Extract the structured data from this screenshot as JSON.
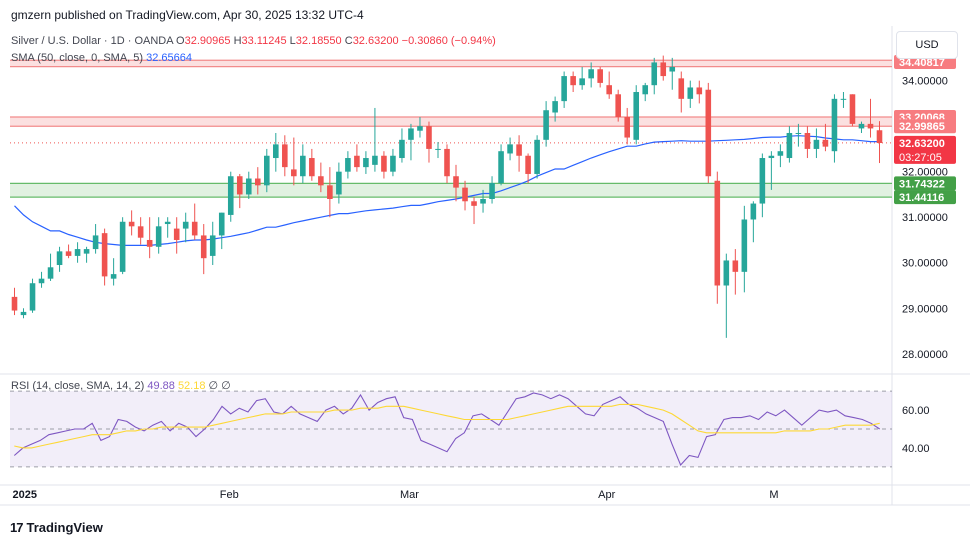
{
  "header": {
    "publisher": "gmzern published on TradingView.com, Apr 30, 2025 13:32 UTC-4"
  },
  "legend": {
    "symbol": "Silver / U.S. Dollar · 1D · OANDA",
    "o_label": "O",
    "o": "32.90965",
    "h_label": "H",
    "h": "33.11245",
    "l_label": "L",
    "l": "32.18550",
    "c_label": "C",
    "c": "32.63200",
    "change": "−0.30860 (−0.94%)",
    "sma_label": "SMA (50, close, 0, SMA, 5)",
    "sma_value": "32.65664",
    "rsi_label": "RSI (14, close, SMA, 14, 2)",
    "rsi_value": "49.88",
    "rsi_sma_value": "52.18",
    "rsi_extra": "∅ ∅"
  },
  "currency_button": "USD",
  "footer": {
    "brand": "TradingView",
    "logo": "17"
  },
  "colors": {
    "up": "#26a69a",
    "down": "#ef5350",
    "sma": "#2962ff",
    "rsi": "#7e57c2",
    "rsi_sma": "#fdd835",
    "zone_red": "#f7c7c7",
    "zone_green": "#c8e6c9"
  },
  "chart_data": [
    {
      "type": "candlestick",
      "title": "Silver / U.S. Dollar · 1D · OANDA",
      "ylim": [
        27.6,
        35.2
      ],
      "y_ticks": [
        "28.00000",
        "29.00000",
        "30.00000",
        "31.00000",
        "32.00000",
        "33.00000",
        "34.00000"
      ],
      "x_tick_labels": [
        "2025",
        "Feb",
        "Mar",
        "Apr",
        "M"
      ],
      "x_tick_index": [
        0,
        23,
        43,
        65,
        84
      ],
      "n_slots": 85,
      "candles": [
        {
          "o": 29.25,
          "h": 29.45,
          "l": 28.85,
          "c": 28.95
        },
        {
          "o": 28.85,
          "h": 29.0,
          "l": 28.78,
          "c": 28.92
        },
        {
          "o": 28.95,
          "h": 29.65,
          "l": 28.9,
          "c": 29.55
        },
        {
          "o": 29.55,
          "h": 29.8,
          "l": 29.45,
          "c": 29.65
        },
        {
          "o": 29.65,
          "h": 30.2,
          "l": 29.6,
          "c": 29.9
        },
        {
          "o": 29.95,
          "h": 30.35,
          "l": 29.8,
          "c": 30.25
        },
        {
          "o": 30.25,
          "h": 30.4,
          "l": 30.1,
          "c": 30.15
        },
        {
          "o": 30.15,
          "h": 30.45,
          "l": 30.0,
          "c": 30.3
        },
        {
          "o": 30.2,
          "h": 30.35,
          "l": 30.0,
          "c": 30.3
        },
        {
          "o": 30.3,
          "h": 30.85,
          "l": 30.2,
          "c": 30.6
        },
        {
          "o": 30.65,
          "h": 30.75,
          "l": 29.5,
          "c": 29.7
        },
        {
          "o": 29.65,
          "h": 30.1,
          "l": 29.5,
          "c": 29.75
        },
        {
          "o": 29.8,
          "h": 31.0,
          "l": 29.75,
          "c": 30.9
        },
        {
          "o": 30.9,
          "h": 31.15,
          "l": 30.6,
          "c": 30.8
        },
        {
          "o": 30.8,
          "h": 31.0,
          "l": 30.4,
          "c": 30.55
        },
        {
          "o": 30.5,
          "h": 31.0,
          "l": 30.1,
          "c": 30.35
        },
        {
          "o": 30.35,
          "h": 31.0,
          "l": 30.2,
          "c": 30.8
        },
        {
          "o": 30.85,
          "h": 31.0,
          "l": 30.55,
          "c": 30.9
        },
        {
          "o": 30.75,
          "h": 31.0,
          "l": 30.2,
          "c": 30.5
        },
        {
          "o": 30.75,
          "h": 31.1,
          "l": 30.45,
          "c": 30.9
        },
        {
          "o": 30.9,
          "h": 31.3,
          "l": 30.5,
          "c": 30.6
        },
        {
          "o": 30.6,
          "h": 30.85,
          "l": 29.75,
          "c": 30.1
        },
        {
          "o": 30.15,
          "h": 30.9,
          "l": 29.95,
          "c": 30.6
        },
        {
          "o": 30.6,
          "h": 31.1,
          "l": 30.3,
          "c": 31.1
        },
        {
          "o": 31.05,
          "h": 32.0,
          "l": 30.9,
          "c": 31.9
        },
        {
          "o": 31.9,
          "h": 31.95,
          "l": 31.2,
          "c": 31.5
        },
        {
          "o": 31.5,
          "h": 32.0,
          "l": 31.4,
          "c": 31.85
        },
        {
          "o": 31.85,
          "h": 32.1,
          "l": 31.5,
          "c": 31.7
        },
        {
          "o": 31.7,
          "h": 32.5,
          "l": 31.55,
          "c": 32.35
        },
        {
          "o": 32.3,
          "h": 32.85,
          "l": 32.0,
          "c": 32.6
        },
        {
          "o": 32.6,
          "h": 32.8,
          "l": 31.9,
          "c": 32.1
        },
        {
          "o": 32.05,
          "h": 32.75,
          "l": 31.7,
          "c": 31.9
        },
        {
          "o": 31.9,
          "h": 32.6,
          "l": 31.75,
          "c": 32.35
        },
        {
          "o": 32.3,
          "h": 32.5,
          "l": 31.8,
          "c": 31.9
        },
        {
          "o": 31.9,
          "h": 32.2,
          "l": 31.55,
          "c": 31.7
        },
        {
          "o": 31.7,
          "h": 32.1,
          "l": 31.0,
          "c": 31.4
        },
        {
          "o": 31.5,
          "h": 32.2,
          "l": 31.3,
          "c": 32.0
        },
        {
          "o": 32.0,
          "h": 32.45,
          "l": 31.85,
          "c": 32.3
        },
        {
          "o": 32.35,
          "h": 32.6,
          "l": 32.0,
          "c": 32.1
        },
        {
          "o": 32.1,
          "h": 32.45,
          "l": 31.95,
          "c": 32.3
        },
        {
          "o": 32.15,
          "h": 33.4,
          "l": 32.0,
          "c": 32.35
        },
        {
          "o": 32.35,
          "h": 32.45,
          "l": 31.85,
          "c": 32.0
        },
        {
          "o": 32.0,
          "h": 32.5,
          "l": 31.9,
          "c": 32.35
        },
        {
          "o": 32.3,
          "h": 32.95,
          "l": 32.2,
          "c": 32.7
        },
        {
          "o": 32.7,
          "h": 33.05,
          "l": 32.25,
          "c": 32.95
        },
        {
          "o": 32.9,
          "h": 33.2,
          "l": 32.75,
          "c": 33.0
        },
        {
          "o": 33.0,
          "h": 33.1,
          "l": 32.2,
          "c": 32.5
        },
        {
          "o": 32.5,
          "h": 32.65,
          "l": 32.3,
          "c": 32.5
        },
        {
          "o": 32.5,
          "h": 32.6,
          "l": 31.75,
          "c": 31.9
        },
        {
          "o": 31.9,
          "h": 32.15,
          "l": 31.35,
          "c": 31.65
        },
        {
          "o": 31.65,
          "h": 31.8,
          "l": 31.15,
          "c": 31.35
        },
        {
          "o": 31.35,
          "h": 31.45,
          "l": 30.85,
          "c": 31.25
        },
        {
          "o": 31.3,
          "h": 31.6,
          "l": 31.1,
          "c": 31.4
        },
        {
          "o": 31.4,
          "h": 31.9,
          "l": 31.3,
          "c": 31.75
        },
        {
          "o": 31.75,
          "h": 32.6,
          "l": 31.7,
          "c": 32.45
        },
        {
          "o": 32.4,
          "h": 32.75,
          "l": 32.25,
          "c": 32.6
        },
        {
          "o": 32.6,
          "h": 32.8,
          "l": 32.0,
          "c": 32.35
        },
        {
          "o": 32.35,
          "h": 32.4,
          "l": 31.75,
          "c": 31.95
        },
        {
          "o": 31.95,
          "h": 32.8,
          "l": 31.85,
          "c": 32.7
        },
        {
          "o": 32.7,
          "h": 33.55,
          "l": 32.55,
          "c": 33.35
        },
        {
          "o": 33.3,
          "h": 33.65,
          "l": 33.1,
          "c": 33.55
        },
        {
          "o": 33.55,
          "h": 34.2,
          "l": 33.4,
          "c": 34.1
        },
        {
          "o": 34.1,
          "h": 34.2,
          "l": 33.75,
          "c": 33.9
        },
        {
          "o": 33.9,
          "h": 34.3,
          "l": 33.8,
          "c": 34.05
        },
        {
          "o": 34.05,
          "h": 34.4,
          "l": 33.85,
          "c": 34.25
        },
        {
          "o": 34.25,
          "h": 34.3,
          "l": 33.85,
          "c": 33.95
        },
        {
          "o": 33.9,
          "h": 34.2,
          "l": 33.6,
          "c": 33.7
        },
        {
          "o": 33.7,
          "h": 33.8,
          "l": 33.1,
          "c": 33.2
        },
        {
          "o": 33.2,
          "h": 33.4,
          "l": 32.6,
          "c": 32.75
        },
        {
          "o": 32.7,
          "h": 33.9,
          "l": 32.6,
          "c": 33.75
        },
        {
          "o": 33.7,
          "h": 33.95,
          "l": 33.55,
          "c": 33.9
        },
        {
          "o": 33.9,
          "h": 34.5,
          "l": 33.7,
          "c": 34.4
        },
        {
          "o": 34.4,
          "h": 34.55,
          "l": 34.0,
          "c": 34.1
        },
        {
          "o": 34.2,
          "h": 34.5,
          "l": 33.8,
          "c": 34.3
        },
        {
          "o": 34.05,
          "h": 34.2,
          "l": 33.3,
          "c": 33.6
        },
        {
          "o": 33.6,
          "h": 34.0,
          "l": 33.4,
          "c": 33.85
        },
        {
          "o": 33.85,
          "h": 34.0,
          "l": 33.5,
          "c": 33.7
        },
        {
          "o": 33.8,
          "h": 33.95,
          "l": 31.75,
          "c": 31.9
        },
        {
          "o": 31.8,
          "h": 32.0,
          "l": 29.1,
          "c": 29.5
        },
        {
          "o": 29.5,
          "h": 30.2,
          "l": 28.35,
          "c": 30.05
        },
        {
          "o": 30.05,
          "h": 30.3,
          "l": 29.3,
          "c": 29.8
        },
        {
          "o": 29.8,
          "h": 31.25,
          "l": 29.35,
          "c": 30.95
        },
        {
          "o": 30.95,
          "h": 31.35,
          "l": 30.45,
          "c": 31.3
        },
        {
          "o": 31.3,
          "h": 32.4,
          "l": 31.0,
          "c": 32.3
        }
      ],
      "extra_candles": [
        {
          "o": 32.3,
          "h": 32.45,
          "l": 31.6,
          "c": 32.35
        },
        {
          "o": 32.35,
          "h": 32.6,
          "l": 32.1,
          "c": 32.45
        },
        {
          "o": 32.3,
          "h": 33.0,
          "l": 32.2,
          "c": 32.85
        },
        {
          "o": 32.85,
          "h": 33.05,
          "l": 32.55,
          "c": 32.85
        },
        {
          "o": 32.85,
          "h": 33.0,
          "l": 32.3,
          "c": 32.5
        },
        {
          "o": 32.5,
          "h": 32.95,
          "l": 32.3,
          "c": 32.7
        },
        {
          "o": 32.7,
          "h": 33.05,
          "l": 32.45,
          "c": 32.55
        },
        {
          "o": 32.45,
          "h": 33.7,
          "l": 32.2,
          "c": 33.6
        },
        {
          "o": 33.6,
          "h": 33.75,
          "l": 33.4,
          "c": 33.6
        },
        {
          "o": 33.7,
          "h": 33.7,
          "l": 33.0,
          "c": 33.05
        },
        {
          "o": 32.95,
          "h": 33.1,
          "l": 32.85,
          "c": 33.05
        },
        {
          "o": 33.05,
          "h": 33.6,
          "l": 32.75,
          "c": 32.95
        },
        {
          "o": 32.91,
          "h": 33.11,
          "l": 32.19,
          "c": 32.63
        }
      ],
      "sma50": [
        31.25,
        31.05,
        30.9,
        30.8,
        30.7,
        30.62,
        30.56,
        30.5,
        30.45,
        30.42,
        30.4,
        30.38,
        30.38,
        30.38,
        30.4,
        30.42,
        30.45,
        30.48,
        30.5,
        30.52,
        30.55,
        30.58,
        30.62,
        30.66,
        30.72,
        30.78,
        30.83,
        30.88,
        30.92,
        30.96,
        31.0,
        31.04,
        31.08,
        31.11,
        31.14,
        31.16,
        31.18,
        31.2,
        31.23,
        31.26,
        31.3,
        31.34,
        31.37,
        31.4,
        31.44,
        31.48,
        31.52,
        31.58,
        31.65,
        31.72,
        31.8,
        31.9,
        31.98,
        32.06,
        32.14,
        32.22,
        32.3,
        32.37,
        32.44,
        32.5,
        32.56,
        32.61,
        32.65,
        32.66,
        32.67,
        32.68,
        32.67,
        32.67,
        32.68,
        32.69,
        32.7,
        32.71,
        32.73,
        32.75,
        32.76,
        32.78,
        32.79,
        32.78,
        32.77,
        32.74,
        32.72,
        32.7,
        32.68,
        32.66,
        32.66
      ],
      "levels": [
        {
          "value": 34.40817,
          "label": "34.40817",
          "kind": "resistance"
        },
        {
          "value": 33.20068,
          "label": "33.20068",
          "kind": "resistance"
        },
        {
          "value": 32.99865,
          "label": "32.99865",
          "kind": "resistance"
        },
        {
          "value": 32.632,
          "label": "32.63200",
          "kind": "last-price",
          "countdown": "03:27:05"
        },
        {
          "value": 31.74322,
          "label": "31.74322",
          "kind": "support"
        },
        {
          "value": 31.44116,
          "label": "31.44116",
          "kind": "support"
        }
      ]
    },
    {
      "type": "line",
      "title": "RSI (14, close, SMA, 14, 2)",
      "ylim": [
        22,
        78
      ],
      "y_ticks": [
        "40.00",
        "60.00"
      ],
      "bands": [
        30,
        50,
        70
      ],
      "series": [
        {
          "name": "RSI",
          "values": [
            36,
            40,
            42,
            44,
            47,
            48,
            49,
            50,
            50,
            53,
            44,
            46,
            55,
            54,
            51,
            49,
            52,
            54,
            49,
            53,
            51,
            46,
            50,
            55,
            62,
            58,
            61,
            59,
            65,
            66,
            59,
            58,
            62,
            58,
            56,
            54,
            60,
            62,
            58,
            61,
            68,
            60,
            64,
            66,
            67,
            56,
            55,
            44,
            42,
            40,
            38,
            45,
            48,
            57,
            58,
            55,
            52,
            59,
            66,
            67,
            69,
            68,
            66,
            68,
            66,
            62,
            58,
            57,
            63,
            65,
            67,
            63,
            61,
            58,
            56,
            54,
            42,
            31,
            36,
            35,
            46,
            47,
            55,
            56,
            56,
            57,
            55,
            59,
            57,
            60,
            56,
            52,
            56,
            60,
            59,
            60,
            57,
            56,
            55,
            53,
            50
          ]
        },
        {
          "name": "RSI SMA",
          "values": [
            41,
            40,
            40,
            41,
            42,
            43,
            44,
            45,
            46,
            47,
            47,
            47,
            48,
            49,
            49,
            50,
            50,
            51,
            51,
            51,
            51,
            51,
            51,
            52,
            53,
            54,
            55,
            56,
            57,
            58,
            58,
            58,
            59,
            59,
            59,
            59,
            59,
            60,
            60,
            60,
            61,
            61,
            61,
            62,
            62,
            62,
            61,
            60,
            59,
            58,
            57,
            56,
            55,
            55,
            55,
            55,
            55,
            55,
            56,
            57,
            58,
            59,
            60,
            61,
            62,
            62,
            62,
            62,
            62,
            62,
            63,
            63,
            63,
            62,
            61,
            60,
            58,
            55,
            52,
            49,
            48,
            48,
            48,
            48,
            48,
            48,
            48,
            48,
            48,
            49,
            49,
            49,
            49,
            50,
            50,
            51,
            52,
            52,
            52,
            52,
            53
          ]
        }
      ]
    }
  ]
}
